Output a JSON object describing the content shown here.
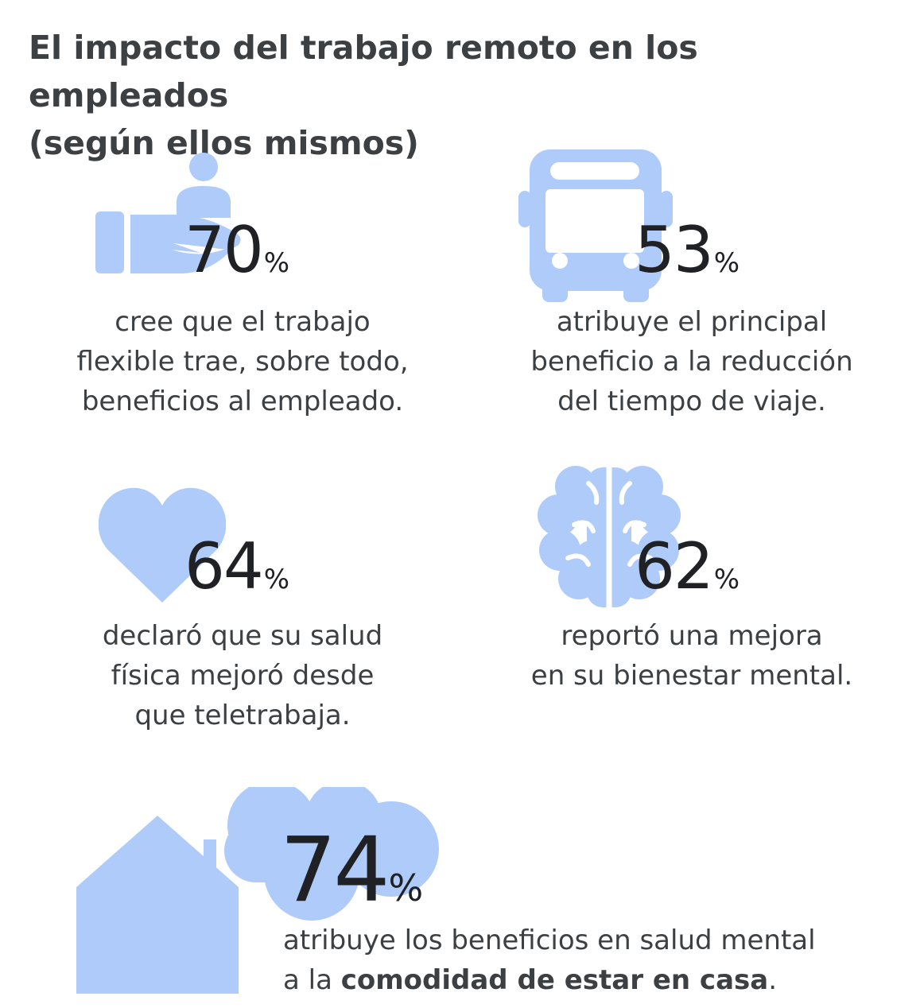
{
  "title": {
    "line1": "El impacto del trabajo remoto en los empleados",
    "line2": "(según ellos mismos)"
  },
  "accent_color": "#aecbfa",
  "text_color": "#3c4043",
  "stats": [
    {
      "icon": "hand-holding-person-icon",
      "value": "70",
      "unit": "%",
      "lines": [
        "cree que el trabajo",
        "flexible trae, sobre todo,",
        "beneficios al empleado."
      ]
    },
    {
      "icon": "bus-icon",
      "value": "53",
      "unit": "%",
      "lines": [
        "atribuye el principal",
        "beneficio a la reducción",
        "del tiempo de viaje."
      ]
    },
    {
      "icon": "heart-icon",
      "value": "64",
      "unit": "%",
      "lines": [
        "declaró que su salud",
        "física mejoró desde",
        "que teletrabaja."
      ]
    },
    {
      "icon": "brain-icon",
      "value": "62",
      "unit": "%",
      "lines": [
        "reportó una mejora",
        "en su bienestar mental."
      ]
    },
    {
      "icon": "house-cloud-icon",
      "value": "74",
      "unit": "%",
      "line1": "atribuye los beneficios en salud mental",
      "line2_prefix": "a la ",
      "line2_bold": "comodidad de estar en casa",
      "line2_suffix": "."
    }
  ]
}
